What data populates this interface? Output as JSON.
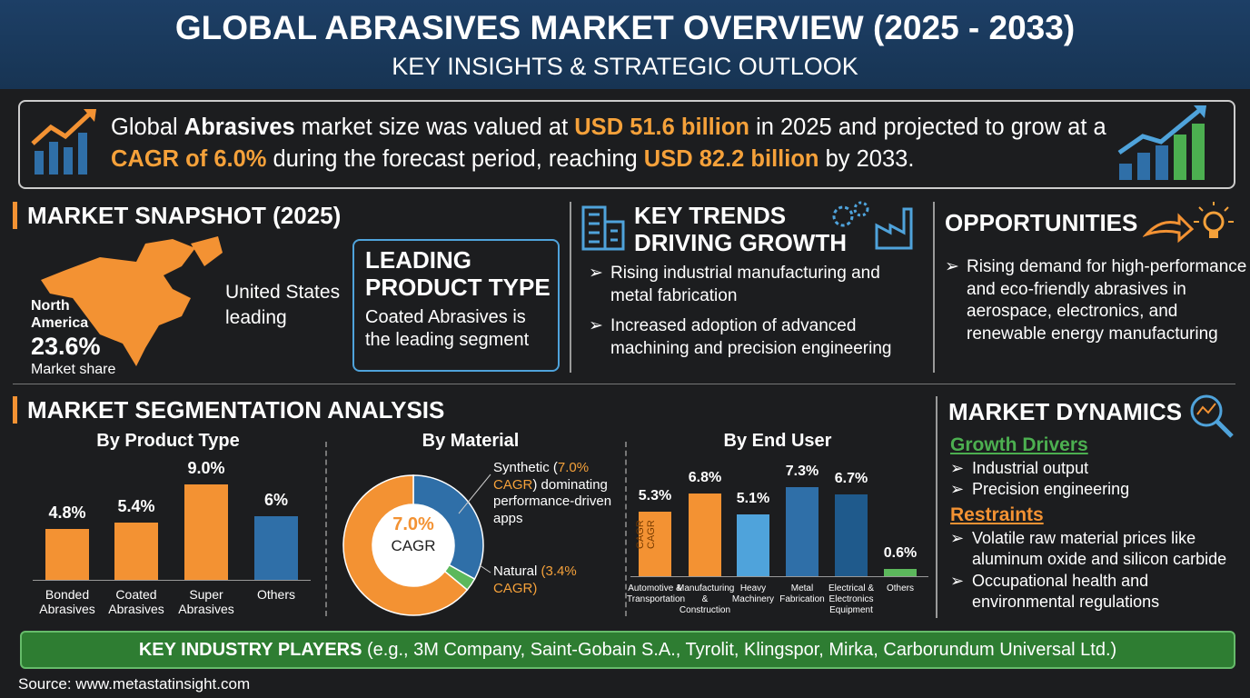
{
  "header": {
    "title": "GLOBAL ABRASIVES MARKET OVERVIEW (2025 - 2033)",
    "subtitle": "KEY INSIGHTS & STRATEGIC OUTLOOK"
  },
  "summary": {
    "parts": [
      "Global ",
      "Abrasives",
      " market size was valued at ",
      "USD 51.6 billion",
      " in 2025 and projected to grow at a ",
      "CAGR of 6.0%",
      " during the forecast period, reaching ",
      "USD 82.2 billion",
      " by 2033."
    ]
  },
  "snapshot": {
    "title": "MARKET SNAPSHOT (2025)",
    "region": "North America",
    "share": "23.6%",
    "share_label": "Market share",
    "country_note": "United States leading",
    "leading_title": "LEADING PRODUCT TYPE",
    "leading_text": "Coated Abrasives is the leading segment"
  },
  "trends": {
    "title": "KEY TRENDS DRIVING GROWTH",
    "items": [
      "Rising industrial manufacturing and metal fabrication",
      "Increased adoption of advanced machining and precision engineering"
    ]
  },
  "opportunities": {
    "title": "OPPORTUNITIES",
    "items": [
      "Rising demand for high-performance and eco-friendly abrasives in aerospace, electronics, and renewable energy manufacturing"
    ]
  },
  "segmentation": {
    "title": "MARKET SEGMENTATION ANALYSIS"
  },
  "dynamics": {
    "title": "MARKET DYNAMICS",
    "drivers_title": "Growth Drivers",
    "drivers": [
      "Industrial output",
      "Precision engineering"
    ],
    "restraints_title": "Restraints",
    "restraints": [
      "Volatile raw material prices like aluminum oxide and silicon carbide",
      "Occupational health and environmental regulations"
    ]
  },
  "players": {
    "label": "KEY INDUSTRY PLAYERS",
    "text": "(e.g., 3M Company, Saint-Gobain S.A., Tyrolit, Klingspor, Mirka, Carborundum Universal Ltd.)"
  },
  "source": "Source: www.metastatinsight.com",
  "chart_data": [
    {
      "type": "bar",
      "title": "By Product Type",
      "categories": [
        "Bonded Abrasives",
        "Coated Abrasives",
        "Super Abrasives",
        "Others"
      ],
      "values": [
        4.8,
        5.4,
        9.0,
        6
      ],
      "value_labels": [
        "4.8%",
        "5.4%",
        "9.0%",
        "6%"
      ],
      "colors": [
        "#f39233",
        "#f39233",
        "#f39233",
        "#2f6fa8"
      ]
    },
    {
      "type": "pie",
      "title": "By Material",
      "categories": [
        "Synthetic",
        "Natural",
        null
      ],
      "values": [
        33,
        3,
        64
      ],
      "colors": [
        "#2f6fa8",
        "#5cb85c",
        "#f39233"
      ],
      "center_label": "7.0%",
      "center_sublabel": "CAGR",
      "annotations": [
        [
          "Synthetic (",
          "7.0% CAGR",
          ") dominating performance-driven apps"
        ],
        [
          "Natural ",
          "(3.4% CAGR)"
        ]
      ]
    },
    {
      "type": "bar",
      "title": "By End User",
      "categories": [
        "Automotive & Transportation",
        "Manufacturing & Construction",
        "Heavy Machinery",
        "Metal Fabrication",
        "Electrical & Electronics Equipment",
        "Others"
      ],
      "values": [
        5.3,
        6.8,
        5.1,
        7.3,
        6.7,
        0.6
      ],
      "value_labels": [
        "5.3%",
        "6.8%",
        "5.1%",
        "7.3%",
        "6.7%",
        "0.6%"
      ],
      "colors": [
        "#f39233",
        "#f39233",
        "#4fa3db",
        "#2f6fa8",
        "#1f5a8c",
        "#5cb85c"
      ],
      "inner_labels": [
        "CAGR",
        "CAGR"
      ]
    }
  ]
}
